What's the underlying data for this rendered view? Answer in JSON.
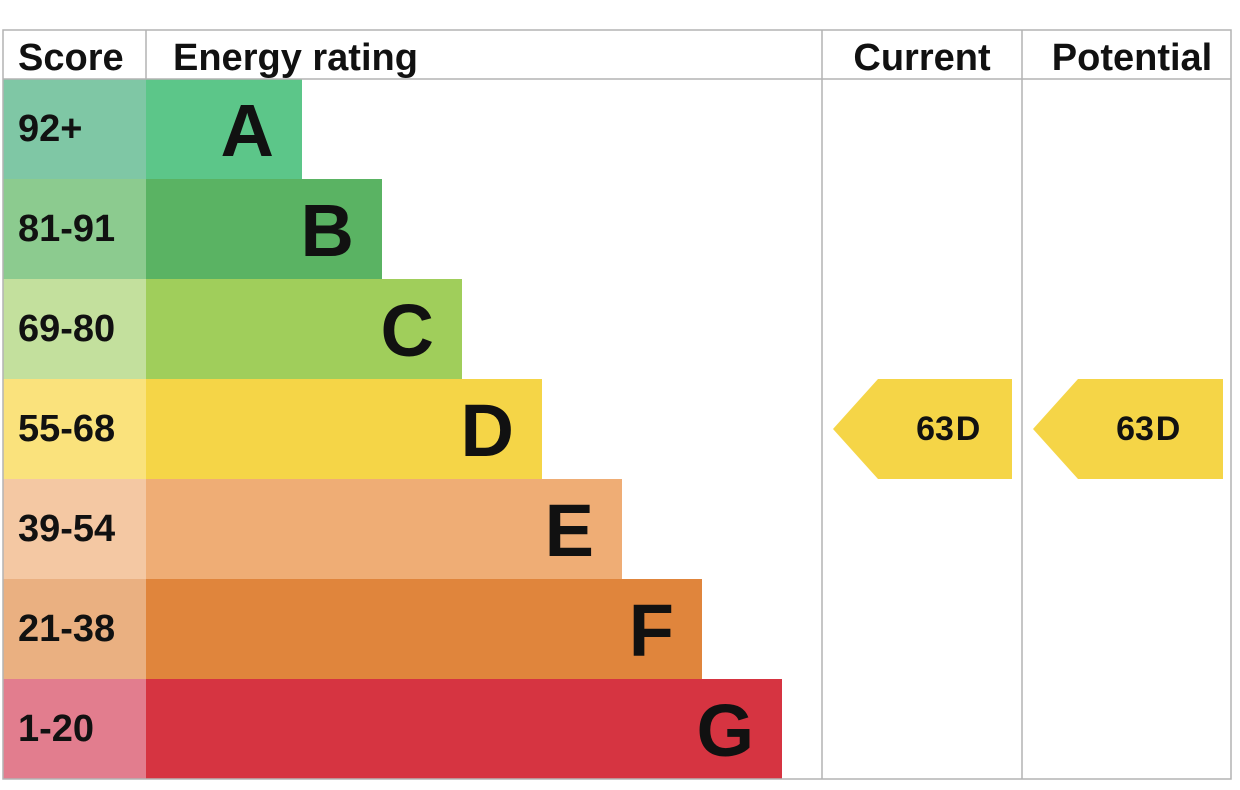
{
  "chart_data": {
    "type": "bar",
    "headers": {
      "score": "Score",
      "rating": "Energy rating",
      "current": "Current",
      "potential": "Potential"
    },
    "bands": [
      {
        "letter": "A",
        "range": "92+",
        "score_color": "#7FC7A5",
        "bar_color": "#5CC689"
      },
      {
        "letter": "B",
        "range": "81-91",
        "score_color": "#8CCB8F",
        "bar_color": "#5AB363"
      },
      {
        "letter": "C",
        "range": "69-80",
        "score_color": "#C3E09D",
        "bar_color": "#A0CE5B"
      },
      {
        "letter": "D",
        "range": "55-68",
        "score_color": "#FAE27C",
        "bar_color": "#F5D547"
      },
      {
        "letter": "E",
        "range": "39-54",
        "score_color": "#F4C8A3",
        "bar_color": "#EFAD75"
      },
      {
        "letter": "F",
        "range": "21-38",
        "score_color": "#EAB081",
        "bar_color": "#E0853C"
      },
      {
        "letter": "G",
        "range": "1-20",
        "score_color": "#E27D8E",
        "bar_color": "#D63441"
      }
    ],
    "current": {
      "score": "63",
      "letter": "D",
      "color": "#F5D547"
    },
    "potential": {
      "score": "63",
      "letter": "D",
      "color": "#F5D547"
    }
  }
}
